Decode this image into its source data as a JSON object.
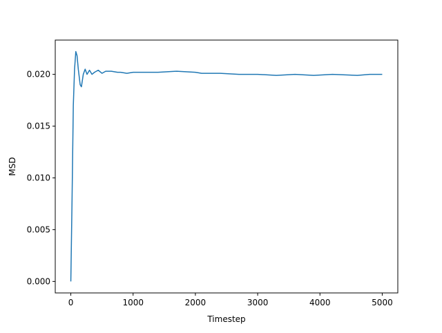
{
  "chart_data": {
    "type": "line",
    "xlabel": "Timestep",
    "ylabel": "MSD",
    "x": [
      0,
      20,
      40,
      60,
      80,
      100,
      120,
      150,
      170,
      200,
      230,
      260,
      300,
      340,
      380,
      440,
      500,
      560,
      650,
      750,
      800,
      900,
      1000,
      1200,
      1400,
      1700,
      2000,
      2100,
      2400,
      2700,
      3000,
      3300,
      3600,
      3900,
      4200,
      4600,
      4800,
      5000
    ],
    "series": [
      {
        "color": "#1f77b4",
        "values": [
          0,
          0.008,
          0.017,
          0.0205,
          0.0222,
          0.0218,
          0.0205,
          0.019,
          0.0188,
          0.02,
          0.0205,
          0.02,
          0.0204,
          0.02,
          0.0202,
          0.0204,
          0.0201,
          0.0203,
          0.0203,
          0.0202,
          0.0202,
          0.0201,
          0.0202,
          0.0202,
          0.0202,
          0.0203,
          0.0202,
          0.0201,
          0.0201,
          0.02,
          0.02,
          0.0199,
          0.02,
          0.0199,
          0.02,
          0.0199,
          0.02,
          0.02
        ]
      }
    ],
    "xlim": [
      -250,
      5250
    ],
    "xticks": [
      0,
      1000,
      2000,
      3000,
      4000,
      5000
    ],
    "ylim": [
      -0.00111,
      0.02331
    ],
    "yticks": [
      {
        "value": 0,
        "label": "0.000"
      },
      {
        "value": 0.005,
        "label": "0.005"
      },
      {
        "value": 0.01,
        "label": "0.010"
      },
      {
        "value": 0.015,
        "label": "0.015"
      },
      {
        "value": 0.02,
        "label": "0.020"
      }
    ]
  }
}
